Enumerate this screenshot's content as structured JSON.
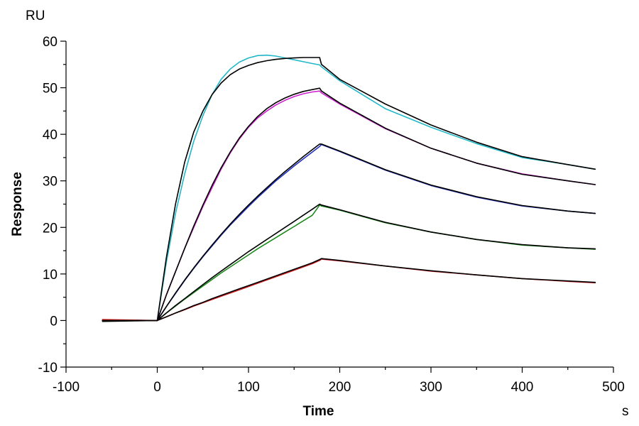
{
  "chart_data": {
    "type": "line",
    "xlabel": "Time",
    "ylabel": "Response",
    "x_unit": "s",
    "y_unit": "RU",
    "xlim": [
      -100,
      500
    ],
    "ylim": [
      -10,
      60
    ],
    "x_ticks": [
      -100,
      0,
      100,
      200,
      300,
      400,
      500
    ],
    "y_ticks": [
      -10,
      0,
      10,
      20,
      30,
      40,
      50,
      60
    ],
    "grid": false,
    "legend": "none",
    "association_end": 180,
    "series": [
      {
        "color": "#22b8c8",
        "role": "measured",
        "x": [
          -60,
          0,
          10,
          20,
          30,
          40,
          50,
          60,
          70,
          80,
          90,
          100,
          110,
          120,
          130,
          140,
          150,
          160,
          170,
          178,
          180,
          200,
          250,
          300,
          350,
          400,
          450,
          480
        ],
        "y": [
          0.1,
          0,
          12.5,
          23,
          31.5,
          38.5,
          44,
          48.5,
          51.8,
          54,
          55.5,
          56.4,
          56.9,
          57,
          56.8,
          56.4,
          56,
          55.6,
          55.2,
          54.9,
          54.5,
          51.5,
          45.5,
          41.5,
          38,
          35,
          33.5,
          32.5
        ]
      },
      {
        "color": "#000000",
        "role": "fit",
        "x": [
          -60,
          0,
          10,
          20,
          30,
          40,
          50,
          60,
          70,
          80,
          90,
          100,
          110,
          120,
          130,
          140,
          150,
          160,
          170,
          178,
          180,
          200,
          250,
          300,
          350,
          400,
          450,
          480
        ],
        "y": [
          -0.2,
          0,
          13.5,
          25,
          34,
          40.5,
          45,
          48.5,
          51,
          52.8,
          54,
          54.8,
          55.4,
          55.8,
          56.1,
          56.3,
          56.4,
          56.5,
          56.5,
          56.5,
          55,
          51.8,
          46.5,
          42,
          38.3,
          35.2,
          33.5,
          32.5
        ]
      },
      {
        "color": "#d020d0",
        "role": "measured",
        "x": [
          -60,
          0,
          10,
          20,
          30,
          40,
          50,
          60,
          70,
          80,
          90,
          100,
          110,
          120,
          130,
          140,
          150,
          160,
          170,
          178,
          180,
          200,
          250,
          300,
          350,
          400,
          450,
          480
        ],
        "y": [
          0,
          0,
          5.5,
          10.5,
          15.5,
          20,
          24.5,
          28.5,
          32.5,
          36,
          39,
          41.5,
          43.5,
          45,
          46.3,
          47.3,
          48.1,
          48.7,
          49.1,
          49.3,
          48.9,
          46.5,
          41.2,
          37,
          33.8,
          31.5,
          30,
          29.2
        ]
      },
      {
        "color": "#000000",
        "role": "fit",
        "x": [
          -60,
          0,
          10,
          20,
          30,
          40,
          50,
          60,
          70,
          80,
          90,
          100,
          110,
          120,
          130,
          140,
          150,
          160,
          170,
          178,
          180,
          200,
          250,
          300,
          350,
          400,
          450,
          480
        ],
        "y": [
          0,
          0,
          5.5,
          10.5,
          15.5,
          20.3,
          24.8,
          29,
          32.8,
          36.2,
          39.2,
          41.7,
          43.8,
          45.5,
          46.8,
          47.8,
          48.6,
          49.2,
          49.6,
          49.9,
          49.3,
          46.7,
          41.3,
          37,
          33.8,
          31.4,
          30,
          29.2
        ]
      },
      {
        "color": "#2030c0",
        "role": "measured",
        "x": [
          -60,
          0,
          10,
          20,
          30,
          40,
          50,
          60,
          70,
          80,
          90,
          100,
          110,
          120,
          130,
          140,
          150,
          160,
          170,
          178,
          180,
          200,
          250,
          300,
          350,
          400,
          450,
          480
        ],
        "y": [
          0.1,
          0,
          3,
          5.8,
          8.6,
          11.2,
          13.7,
          16,
          18.3,
          20.5,
          22.5,
          24.5,
          26.4,
          28.2,
          30,
          31.6,
          33.2,
          34.7,
          36.2,
          37.4,
          37.8,
          36.3,
          32.3,
          29,
          26.5,
          24.6,
          23.5,
          23
        ]
      },
      {
        "color": "#000000",
        "role": "fit",
        "x": [
          -60,
          0,
          10,
          20,
          30,
          40,
          50,
          60,
          70,
          80,
          90,
          100,
          110,
          120,
          130,
          140,
          150,
          160,
          170,
          178,
          180,
          200,
          250,
          300,
          350,
          400,
          450,
          480
        ],
        "y": [
          0,
          0,
          3,
          5.9,
          8.7,
          11.3,
          13.8,
          16.2,
          18.5,
          20.7,
          22.8,
          24.8,
          26.7,
          28.5,
          30.3,
          32,
          33.6,
          35.2,
          36.7,
          37.9,
          37.9,
          36.4,
          32.4,
          29.1,
          26.6,
          24.7,
          23.5,
          23
        ]
      },
      {
        "color": "#1a8a1a",
        "role": "measured",
        "x": [
          -60,
          0,
          10,
          20,
          30,
          40,
          50,
          60,
          70,
          80,
          90,
          100,
          110,
          120,
          130,
          140,
          150,
          160,
          170,
          178,
          180,
          200,
          250,
          300,
          350,
          400,
          450,
          480
        ],
        "y": [
          0,
          0,
          1.6,
          3.1,
          4.6,
          6,
          7.4,
          8.8,
          10.2,
          11.5,
          12.8,
          14.1,
          15.4,
          16.6,
          17.8,
          19,
          20.2,
          21.4,
          22.6,
          24.8,
          24.6,
          23.7,
          21,
          19,
          17.4,
          16.2,
          15.6,
          15.3
        ]
      },
      {
        "color": "#000000",
        "role": "fit",
        "x": [
          -60,
          0,
          10,
          20,
          30,
          40,
          50,
          60,
          70,
          80,
          90,
          100,
          110,
          120,
          130,
          140,
          150,
          160,
          170,
          178,
          180,
          200,
          250,
          300,
          350,
          400,
          450,
          480
        ],
        "y": [
          0,
          0,
          1.6,
          3.2,
          4.7,
          6.2,
          7.7,
          9.2,
          10.6,
          12,
          13.4,
          14.8,
          16.1,
          17.4,
          18.7,
          20,
          21.3,
          22.6,
          23.9,
          25,
          24.8,
          23.8,
          21.1,
          19,
          17.4,
          16.3,
          15.6,
          15.4
        ]
      },
      {
        "color": "#d02020",
        "role": "measured",
        "x": [
          -60,
          0,
          10,
          20,
          30,
          40,
          50,
          60,
          70,
          80,
          90,
          100,
          110,
          120,
          130,
          140,
          150,
          160,
          170,
          178,
          180,
          200,
          250,
          300,
          350,
          400,
          450,
          480
        ],
        "y": [
          0.2,
          0,
          0.8,
          1.6,
          2.3,
          3.1,
          3.8,
          4.5,
          5.2,
          5.9,
          6.6,
          7.3,
          8,
          8.7,
          9.4,
          10.1,
          10.8,
          11.5,
          12.2,
          12.9,
          13.2,
          12.8,
          11.7,
          10.6,
          9.8,
          9,
          8.4,
          8.1
        ]
      },
      {
        "color": "#000000",
        "role": "fit",
        "x": [
          -60,
          0,
          10,
          20,
          30,
          40,
          50,
          60,
          70,
          80,
          90,
          100,
          110,
          120,
          130,
          140,
          150,
          160,
          170,
          178,
          180,
          200,
          250,
          300,
          350,
          400,
          450,
          480
        ],
        "y": [
          0,
          0,
          0.8,
          1.6,
          2.4,
          3.2,
          3.9,
          4.7,
          5.4,
          6.1,
          6.8,
          7.5,
          8.2,
          8.9,
          9.6,
          10.3,
          11,
          11.7,
          12.4,
          13.1,
          13.3,
          12.9,
          11.7,
          10.7,
          9.8,
          9,
          8.5,
          8.2
        ]
      }
    ]
  }
}
